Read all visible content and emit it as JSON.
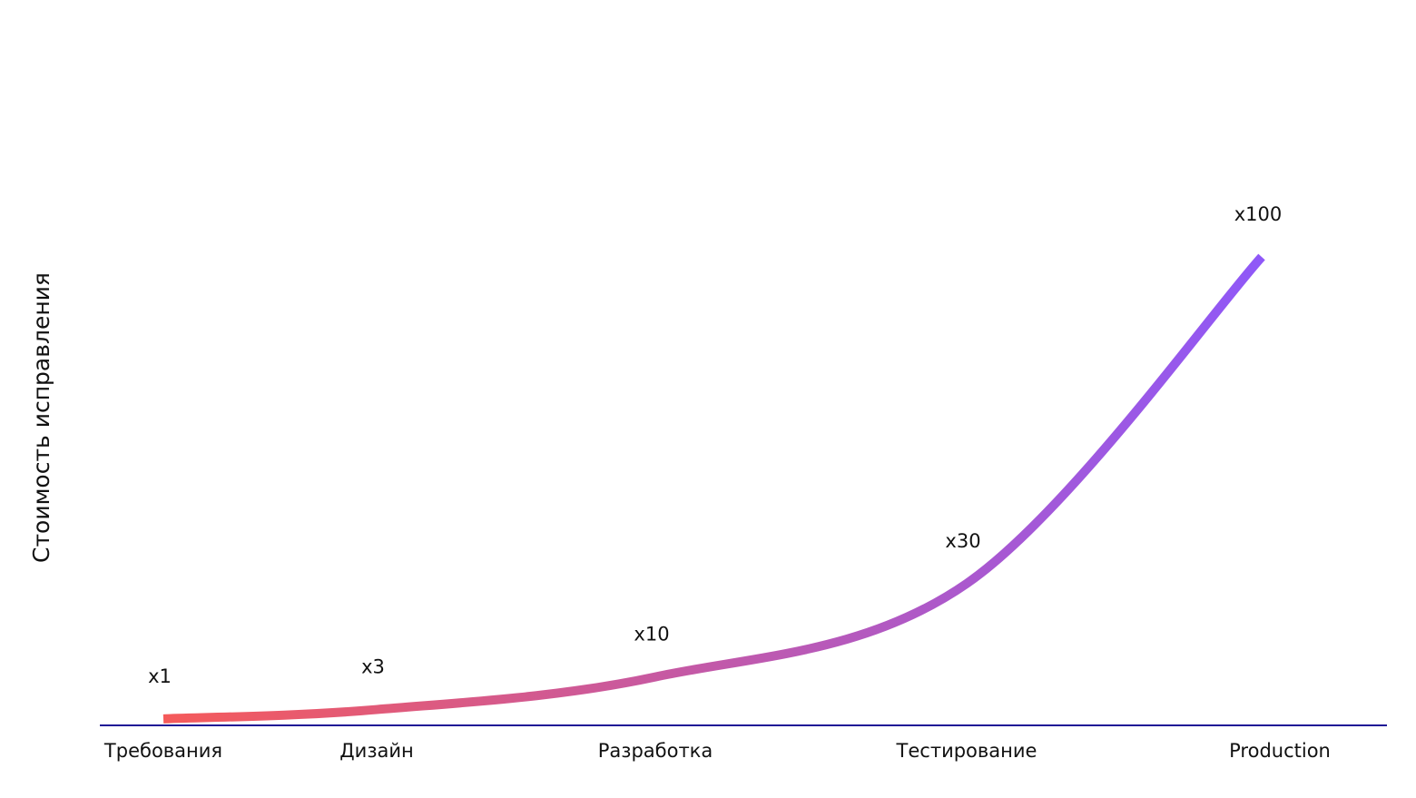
{
  "chart_data": {
    "type": "line",
    "ylabel": "Стоимость исправления",
    "categories": [
      "Требования",
      "Дизайн",
      "Разработка",
      "Тестирование",
      "Production"
    ],
    "values": [
      1,
      3,
      10,
      30,
      100
    ],
    "value_labels": [
      "x1",
      "x3",
      "x10",
      "x30",
      "x100"
    ],
    "ylim": [
      0,
      100
    ],
    "gradient": [
      "#f55a5a",
      "#8f58f8"
    ],
    "axis_color": "#1f1496"
  }
}
